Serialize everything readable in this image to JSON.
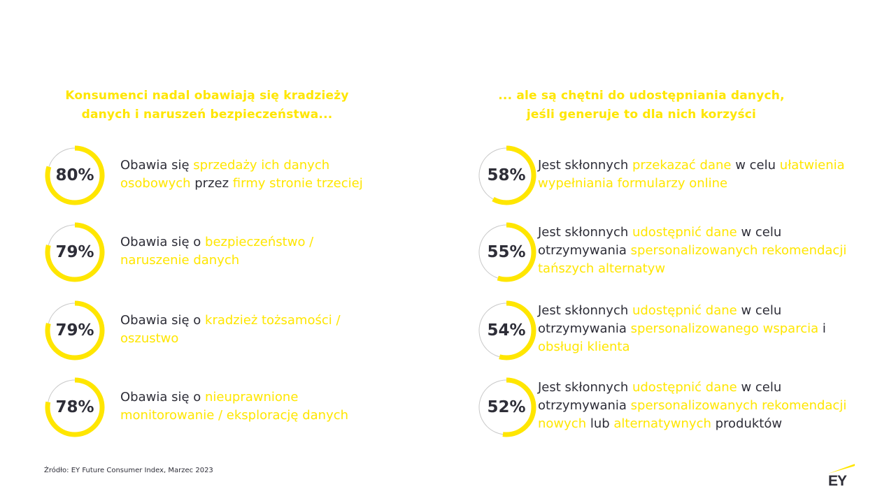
{
  "headings": {
    "left": [
      "Konsumenci nadal obawiają się kradzieży",
      "danych i naruszeń bezpieczeństwa..."
    ],
    "right": [
      "... ale są chętni do udostępniania danych,",
      "jeśli generuje to dla nich korzyści"
    ]
  },
  "colors": {
    "accent": "#ffe600",
    "text": "#2e2e38",
    "track": "#c8c8c8"
  },
  "chart_data": [
    {
      "type": "donut",
      "title": "Konsumenci nadal obawiają się kradzieży danych i naruszeń bezpieczeństwa...",
      "items": [
        {
          "value": 80,
          "label": "80%",
          "lines": [
            [
              {
                "t": "Obawia się ",
                "h": false
              },
              {
                "t": "sprzedaży ich danych",
                "h": true
              }
            ],
            [
              {
                "t": "osobowych",
                "h": true
              },
              {
                "t": " przez ",
                "h": false
              },
              {
                "t": "firmy stronie trzeciej",
                "h": true
              }
            ]
          ]
        },
        {
          "value": 79,
          "label": "79%",
          "lines": [
            [
              {
                "t": "Obawia się o ",
                "h": false
              },
              {
                "t": "bezpieczeństwo /",
                "h": true
              }
            ],
            [
              {
                "t": "naruszenie danych",
                "h": true
              }
            ]
          ]
        },
        {
          "value": 79,
          "label": "79%",
          "lines": [
            [
              {
                "t": "Obawia się o ",
                "h": false
              },
              {
                "t": "kradzież tożsamości /",
                "h": true
              }
            ],
            [
              {
                "t": "oszustwo",
                "h": true
              }
            ]
          ]
        },
        {
          "value": 78,
          "label": "78%",
          "lines": [
            [
              {
                "t": "Obawia się o ",
                "h": false
              },
              {
                "t": "nieuprawnione",
                "h": true
              }
            ],
            [
              {
                "t": "monitorowanie / eksplorację danych",
                "h": true
              }
            ]
          ]
        }
      ]
    },
    {
      "type": "donut",
      "title": "... ale są chętni do udostępniania danych, jeśli generuje to dla nich korzyści",
      "items": [
        {
          "value": 58,
          "label": "58%",
          "lines": [
            [
              {
                "t": "Jest skłonnych ",
                "h": false
              },
              {
                "t": "przekazać dane",
                "h": true
              },
              {
                "t": " w celu ",
                "h": false
              },
              {
                "t": "ułatwienia",
                "h": true
              }
            ],
            [
              {
                "t": "wypełniania formularzy online",
                "h": true
              }
            ]
          ]
        },
        {
          "value": 55,
          "label": "55%",
          "lines": [
            [
              {
                "t": "Jest skłonnych ",
                "h": false
              },
              {
                "t": "udostępnić dane",
                "h": true
              },
              {
                "t": " w celu",
                "h": false
              }
            ],
            [
              {
                "t": "otrzymywania ",
                "h": false
              },
              {
                "t": "spersonalizowanych rekomendacji",
                "h": true
              }
            ],
            [
              {
                "t": "tańszych alternatyw",
                "h": true
              }
            ]
          ]
        },
        {
          "value": 54,
          "label": "54%",
          "lines": [
            [
              {
                "t": "Jest skłonnych ",
                "h": false
              },
              {
                "t": "udostępnić dane",
                "h": true
              },
              {
                "t": " w celu",
                "h": false
              }
            ],
            [
              {
                "t": "otrzymywania ",
                "h": false
              },
              {
                "t": "spersonalizowanego wsparcia",
                "h": true
              },
              {
                "t": " i",
                "h": false
              }
            ],
            [
              {
                "t": "obsługi klienta",
                "h": true
              }
            ]
          ]
        },
        {
          "value": 52,
          "label": "52%",
          "lines": [
            [
              {
                "t": "Jest skłonnych ",
                "h": false
              },
              {
                "t": "udostępnić dane",
                "h": true
              },
              {
                "t": " w celu",
                "h": false
              }
            ],
            [
              {
                "t": "otrzymywania ",
                "h": false
              },
              {
                "t": "spersonalizowanych rekomendacji",
                "h": true
              }
            ],
            [
              {
                "t": "nowych",
                "h": true
              },
              {
                "t": " lub ",
                "h": false
              },
              {
                "t": "alternatywnych",
                "h": true
              },
              {
                "t": " produktów",
                "h": false
              }
            ]
          ]
        }
      ]
    }
  ],
  "source": "Źródło: EY Future Consumer Index, Marzec 2023",
  "logo": {
    "text": "EY"
  }
}
